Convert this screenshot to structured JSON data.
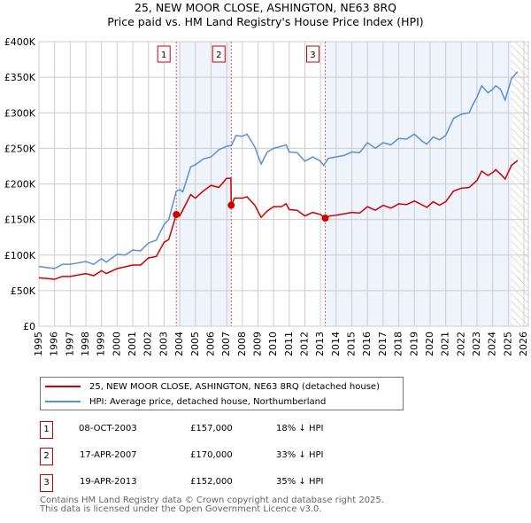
{
  "chart_data": {
    "type": "line",
    "title": "25, NEW MOOR CLOSE, ASHINGTON, NE63 8RQ",
    "subtitle": "Price paid vs. HM Land Registry's House Price Index (HPI)",
    "xlim": [
      1995,
      2026
    ],
    "ylim": [
      0,
      400000
    ],
    "x_ticks": [
      "1995",
      "1996",
      "1997",
      "1998",
      "1999",
      "2000",
      "2001",
      "2002",
      "2003",
      "2004",
      "2005",
      "2006",
      "2007",
      "2008",
      "2009",
      "2010",
      "2011",
      "2012",
      "2013",
      "2014",
      "2015",
      "2016",
      "2017",
      "2018",
      "2019",
      "2020",
      "2021",
      "2022",
      "2023",
      "2024",
      "2025",
      "2026"
    ],
    "y_ticks": [
      {
        "v": 0,
        "l": "£0"
      },
      {
        "v": 50000,
        "l": "£50K"
      },
      {
        "v": 100000,
        "l": "£100K"
      },
      {
        "v": 150000,
        "l": "£150K"
      },
      {
        "v": 200000,
        "l": "£200K"
      },
      {
        "v": 250000,
        "l": "£250K"
      },
      {
        "v": 300000,
        "l": "£300K"
      },
      {
        "v": 350000,
        "l": "£350K"
      },
      {
        "v": 400000,
        "l": "£400K"
      }
    ],
    "grid": true,
    "series": [
      {
        "name": "25, NEW MOOR CLOSE, ASHINGTON, NE63 8RQ (detached house)",
        "color": "#cc0000",
        "points": [
          [
            1995,
            68
          ],
          [
            1996,
            66
          ],
          [
            1996.5,
            70
          ],
          [
            1997,
            70
          ],
          [
            1998,
            74
          ],
          [
            1998.5,
            71
          ],
          [
            1999,
            78
          ],
          [
            1999.3,
            74
          ],
          [
            2000,
            81
          ],
          [
            2001,
            86
          ],
          [
            2001.5,
            86
          ],
          [
            2002,
            96
          ],
          [
            2002.5,
            98
          ],
          [
            2003,
            118
          ],
          [
            2003.3,
            122
          ],
          [
            2003.78,
            157
          ],
          [
            2004,
            155
          ],
          [
            2004.7,
            185
          ],
          [
            2005,
            180
          ],
          [
            2005.5,
            190
          ],
          [
            2006,
            198
          ],
          [
            2006.5,
            195
          ],
          [
            2007,
            208
          ],
          [
            2007.27,
            208
          ],
          [
            2007.29,
            170
          ],
          [
            2007.5,
            180
          ],
          [
            2008,
            180
          ],
          [
            2008.3,
            182
          ],
          [
            2008.8,
            170
          ],
          [
            2009.2,
            153
          ],
          [
            2009.6,
            162
          ],
          [
            2010,
            168
          ],
          [
            2010.5,
            168
          ],
          [
            2010.8,
            172
          ],
          [
            2011,
            164
          ],
          [
            2011.5,
            163
          ],
          [
            2012,
            155
          ],
          [
            2012.5,
            160
          ],
          [
            2013,
            157
          ],
          [
            2013.3,
            152
          ],
          [
            2013.6,
            155
          ],
          [
            2014,
            156
          ],
          [
            2014.5,
            158
          ],
          [
            2015,
            160
          ],
          [
            2015.5,
            159
          ],
          [
            2016,
            168
          ],
          [
            2016.5,
            163
          ],
          [
            2017,
            170
          ],
          [
            2017.5,
            166
          ],
          [
            2018,
            172
          ],
          [
            2018.5,
            171
          ],
          [
            2019,
            176
          ],
          [
            2019.8,
            167
          ],
          [
            2020.2,
            175
          ],
          [
            2020.6,
            170
          ],
          [
            2021,
            175
          ],
          [
            2021.5,
            190
          ],
          [
            2022,
            194
          ],
          [
            2022.5,
            195
          ],
          [
            2023,
            205
          ],
          [
            2023.3,
            218
          ],
          [
            2023.7,
            212
          ],
          [
            2024,
            216
          ],
          [
            2024.2,
            220
          ],
          [
            2024.5,
            214
          ],
          [
            2024.8,
            207
          ],
          [
            2025.2,
            226
          ],
          [
            2025.6,
            233
          ]
        ]
      },
      {
        "name": "HPI: Average price, detached house, Northumberland",
        "color": "#5b8fd4",
        "points": [
          [
            1995,
            84
          ],
          [
            1996,
            81
          ],
          [
            1996.5,
            87
          ],
          [
            1997,
            87
          ],
          [
            1998,
            91
          ],
          [
            1998.5,
            87
          ],
          [
            1999,
            95
          ],
          [
            1999.3,
            90
          ],
          [
            2000,
            101
          ],
          [
            2000.5,
            100
          ],
          [
            2001,
            107
          ],
          [
            2001.5,
            106
          ],
          [
            2002,
            117
          ],
          [
            2002.5,
            121
          ],
          [
            2003,
            143
          ],
          [
            2003.3,
            150
          ],
          [
            2003.78,
            190
          ],
          [
            2004,
            192
          ],
          [
            2004.2,
            189
          ],
          [
            2004.7,
            224
          ],
          [
            2005,
            227
          ],
          [
            2005.5,
            235
          ],
          [
            2006,
            238
          ],
          [
            2006.5,
            248
          ],
          [
            2007,
            253
          ],
          [
            2007.3,
            254
          ],
          [
            2007.6,
            268
          ],
          [
            2008,
            267
          ],
          [
            2008.3,
            270
          ],
          [
            2008.8,
            252
          ],
          [
            2009.2,
            228
          ],
          [
            2009.6,
            245
          ],
          [
            2010,
            250
          ],
          [
            2010.5,
            253
          ],
          [
            2010.8,
            255
          ],
          [
            2011,
            245
          ],
          [
            2011.5,
            244
          ],
          [
            2012,
            232
          ],
          [
            2012.5,
            238
          ],
          [
            2013,
            232
          ],
          [
            2013.2,
            226
          ],
          [
            2013.5,
            236
          ],
          [
            2014,
            238
          ],
          [
            2014.5,
            240
          ],
          [
            2015,
            245
          ],
          [
            2015.5,
            244
          ],
          [
            2016,
            258
          ],
          [
            2016.5,
            250
          ],
          [
            2017,
            258
          ],
          [
            2017.5,
            255
          ],
          [
            2018,
            264
          ],
          [
            2018.5,
            263
          ],
          [
            2019,
            270
          ],
          [
            2019.5,
            260
          ],
          [
            2019.8,
            256
          ],
          [
            2020.2,
            266
          ],
          [
            2020.6,
            262
          ],
          [
            2021,
            268
          ],
          [
            2021.5,
            292
          ],
          [
            2022,
            298
          ],
          [
            2022.5,
            300
          ],
          [
            2022.7,
            310
          ],
          [
            2023,
            322
          ],
          [
            2023.3,
            338
          ],
          [
            2023.7,
            328
          ],
          [
            2024,
            333
          ],
          [
            2024.2,
            338
          ],
          [
            2024.5,
            333
          ],
          [
            2024.8,
            318
          ],
          [
            2025.2,
            348
          ],
          [
            2025.6,
            358
          ]
        ]
      }
    ],
    "sales": [
      {
        "label": "1",
        "x": 2003.78,
        "y": 157
      },
      {
        "label": "2",
        "x": 2007.29,
        "y": 170
      },
      {
        "label": "3",
        "x": 2013.3,
        "y": 152
      }
    ],
    "shaded_ranges": [
      [
        2003.78,
        2007.29
      ],
      [
        2013.3,
        2025.2
      ]
    ],
    "hatched_from": 2025.2,
    "legend": "below"
  },
  "legend": {
    "red": "25, NEW MOOR CLOSE, ASHINGTON, NE63 8RQ (detached house)",
    "blue": "HPI: Average price, detached house, Northumberland"
  },
  "table": [
    {
      "n": "1",
      "date": "08-OCT-2003",
      "price": "£157,000",
      "hpi": "18% ↓ HPI"
    },
    {
      "n": "2",
      "date": "17-APR-2007",
      "price": "£170,000",
      "hpi": "33% ↓ HPI"
    },
    {
      "n": "3",
      "date": "19-APR-2013",
      "price": "£152,000",
      "hpi": "35% ↓ HPI"
    }
  ],
  "footer": [
    "Contains HM Land Registry data © Crown copyright and database right 2025.",
    "This data is licensed under the Open Government Licence v3.0."
  ]
}
